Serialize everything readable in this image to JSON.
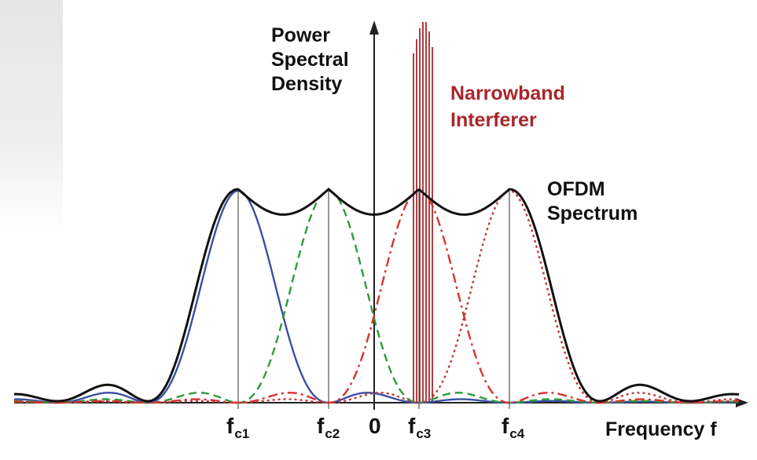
{
  "diagram": {
    "y_axis_label": [
      "Power",
      "Spectral",
      "Density"
    ],
    "x_axis_label": "Frequency f",
    "narrowband_label": [
      "Narrowband",
      "Interferer"
    ],
    "ofdm_label": [
      "OFDM",
      "Spectrum"
    ],
    "ticks": [
      {
        "base": "f",
        "sub": "c1"
      },
      {
        "base": "f",
        "sub": "c2"
      },
      {
        "base": "0",
        "sub": ""
      },
      {
        "base": "f",
        "sub": "c3"
      },
      {
        "base": "f",
        "sub": "c4"
      }
    ],
    "colors": {
      "subcarrier_1": "#3b4fa3",
      "subcarrier_2": "#2e9a3c",
      "subcarrier_3": "#d8322f",
      "subcarrier_4": "#c03a3a",
      "ofdm": "#111111",
      "interferer": "#a8262b"
    },
    "subcarrier_styles": [
      "solid",
      "dashed",
      "dash-dot",
      "dotted"
    ]
  }
}
